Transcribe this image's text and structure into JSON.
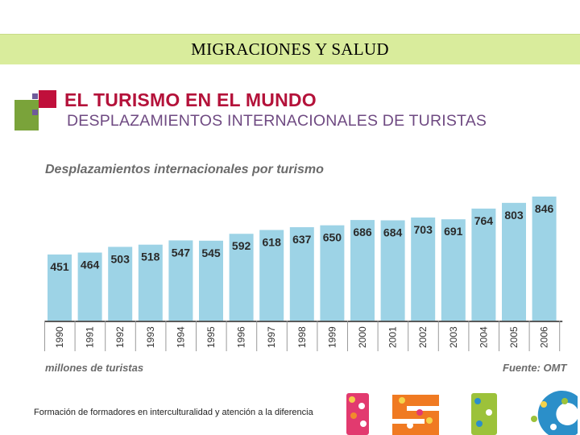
{
  "slide_title": "MIGRACIONES Y SALUD",
  "heading": "EL TURISMO EN EL MUNDO",
  "subheading": "DESPLAZAMIENTOS INTERNACIONALES DE TURISTAS",
  "footer_text": "Formación de formadores en interculturalidad y atención a la diferencia",
  "colors": {
    "bar": "#9dd3e6",
    "axis": "#5a5a5a",
    "heading": "#b4123a",
    "subheading": "#6f4a82",
    "title_bar": "#d9ec9c"
  },
  "chart_data": {
    "type": "bar",
    "title": "Desplazamientos internacionales por turismo",
    "xlabel": "millones de turistas",
    "source": "Fuente: OMT",
    "categories": [
      "1990",
      "1991",
      "1992",
      "1993",
      "1994",
      "1995",
      "1996",
      "1997",
      "1998",
      "1999",
      "2000",
      "2001",
      "2002",
      "2003",
      "2004",
      "2005",
      "2006"
    ],
    "values": [
      451,
      464,
      503,
      518,
      547,
      545,
      592,
      618,
      637,
      650,
      686,
      684,
      703,
      691,
      764,
      803,
      846
    ],
    "ylim": [
      0,
      846
    ]
  }
}
